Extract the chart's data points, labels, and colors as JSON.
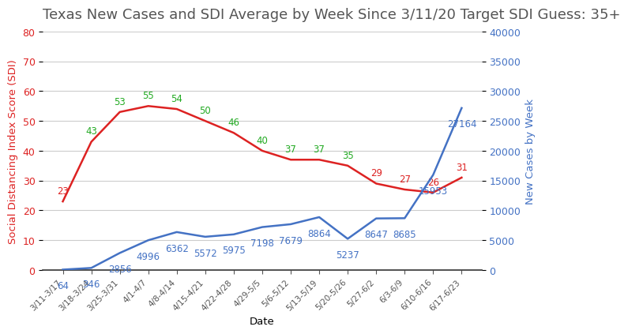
{
  "title": "Texas New Cases and SDI Average by Week Since 3/11/20 Target SDI Guess: 35+",
  "dates": [
    "3/11-3/17",
    "3/18-3/24",
    "3/25-3/31",
    "4/1-4/7",
    "4/8-4/14",
    "4/15-4/21",
    "4/22-4/28",
    "4/29-5/5",
    "5/6-5/12",
    "5/13-5/19",
    "5/20-5/26",
    "5/27-6/2",
    "6/3-6/9",
    "6/10-6/16",
    "6/17-6/23"
  ],
  "sdi_values": [
    23,
    43,
    53,
    55,
    54,
    50,
    46,
    40,
    37,
    37,
    35,
    29,
    27,
    26,
    31
  ],
  "cases_values": [
    64,
    346,
    2856,
    4996,
    6362,
    5572,
    5975,
    7198,
    7679,
    8864,
    5237,
    8647,
    8685,
    15953,
    27164
  ],
  "sdi_labels": [
    "23",
    "43",
    "53",
    "55",
    "54",
    "50",
    "46",
    "40",
    "37",
    "37",
    "35",
    "29",
    "27",
    "26",
    "31"
  ],
  "cases_labels": [
    "64",
    "346",
    "2856",
    "4996",
    "6362",
    "5572",
    "5975",
    "7198",
    "7679",
    "8864",
    "5237",
    "8647",
    "8685",
    "15953",
    "27164"
  ],
  "sdi_target": 35,
  "sdi_color_line": "#dd2222",
  "sdi_color_above": "#22aa22",
  "sdi_color_below": "#dd2222",
  "cases_color": "#4472c4",
  "ylabel_left": "Social Distancing Index Score (SDI)",
  "ylabel_right": "New Cases by Week",
  "xlabel": "Date",
  "ylim_left": [
    0,
    80
  ],
  "ylim_right": [
    0,
    40000
  ],
  "yticks_left": [
    0,
    10,
    20,
    30,
    40,
    50,
    60,
    70,
    80
  ],
  "yticks_right": [
    0,
    5000,
    10000,
    15000,
    20000,
    25000,
    30000,
    35000,
    40000
  ],
  "grid_color": "#cccccc",
  "bg_color": "#ffffff",
  "title_fontsize": 13,
  "label_fontsize": 9.5,
  "tick_fontsize": 9,
  "annotation_fontsize": 8.5
}
